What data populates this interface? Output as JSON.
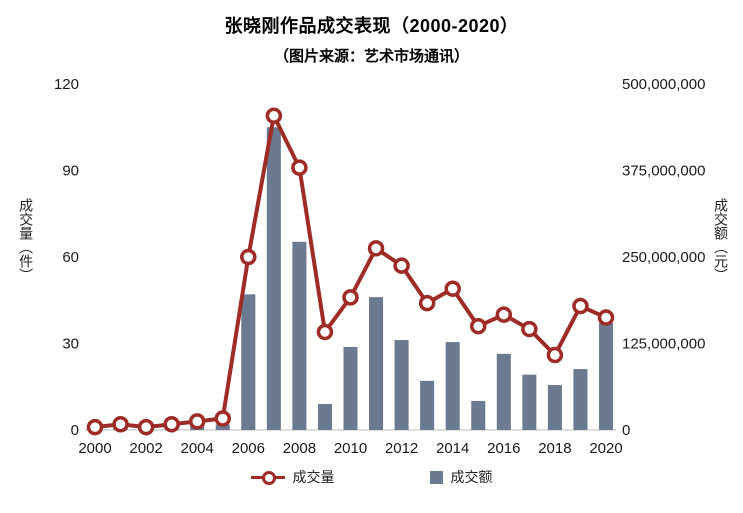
{
  "chart_data": {
    "type": "combo",
    "title": "张晓刚作品成交表现（2000-2020）",
    "subtitle": "（图片来源：艺术市场通讯）",
    "ylabel_left": "成交量（件）",
    "ylabel_right": "成交额（元）",
    "grid": false,
    "legend_position": "bottom",
    "categories": [
      "2000",
      "2001",
      "2002",
      "2003",
      "2004",
      "2005",
      "2006",
      "2007",
      "2008",
      "2009",
      "2010",
      "2011",
      "2012",
      "2013",
      "2014",
      "2015",
      "2016",
      "2017",
      "2018",
      "2019",
      "2020"
    ],
    "x_tick_labels": [
      "2000",
      "2002",
      "2004",
      "2006",
      "2008",
      "2010",
      "2012",
      "2014",
      "2016",
      "2018",
      "2020"
    ],
    "axes": {
      "left": {
        "min": 0,
        "max": 120,
        "ticks": [
          0,
          30,
          60,
          90,
          120
        ]
      },
      "right": {
        "min": 0,
        "max": 500000000,
        "tick_values": [
          0,
          125000000,
          250000000,
          375000000,
          500000000
        ],
        "tick_labels": [
          "0",
          "125,000,000",
          "250,000,000",
          "375,000,000",
          "500,000,000"
        ]
      }
    },
    "series": [
      {
        "name": "成交量",
        "type": "line",
        "axis": "left",
        "color": "#9E2B25",
        "marker": "circle-open",
        "values": [
          1,
          2,
          1,
          2,
          3,
          4,
          60,
          109,
          91,
          34,
          46,
          63,
          57,
          44,
          49,
          36,
          40,
          35,
          26,
          43,
          39
        ]
      },
      {
        "name": "成交额",
        "type": "bar",
        "axis": "right",
        "color": "#6B7A90",
        "values": [
          1500000,
          2500000,
          2000000,
          3000000,
          5000000,
          8000000,
          196000000,
          437500000,
          272000000,
          37500000,
          120000000,
          192000000,
          130000000,
          71000000,
          127000000,
          42000000,
          110000000,
          80000000,
          65000000,
          88000000,
          155000000
        ]
      }
    ],
    "colors": {
      "line": "#9E2B25",
      "bar": "#6B7A90",
      "axis_line": "#c9c9c9",
      "tick_text": "#1a1a1a"
    }
  }
}
